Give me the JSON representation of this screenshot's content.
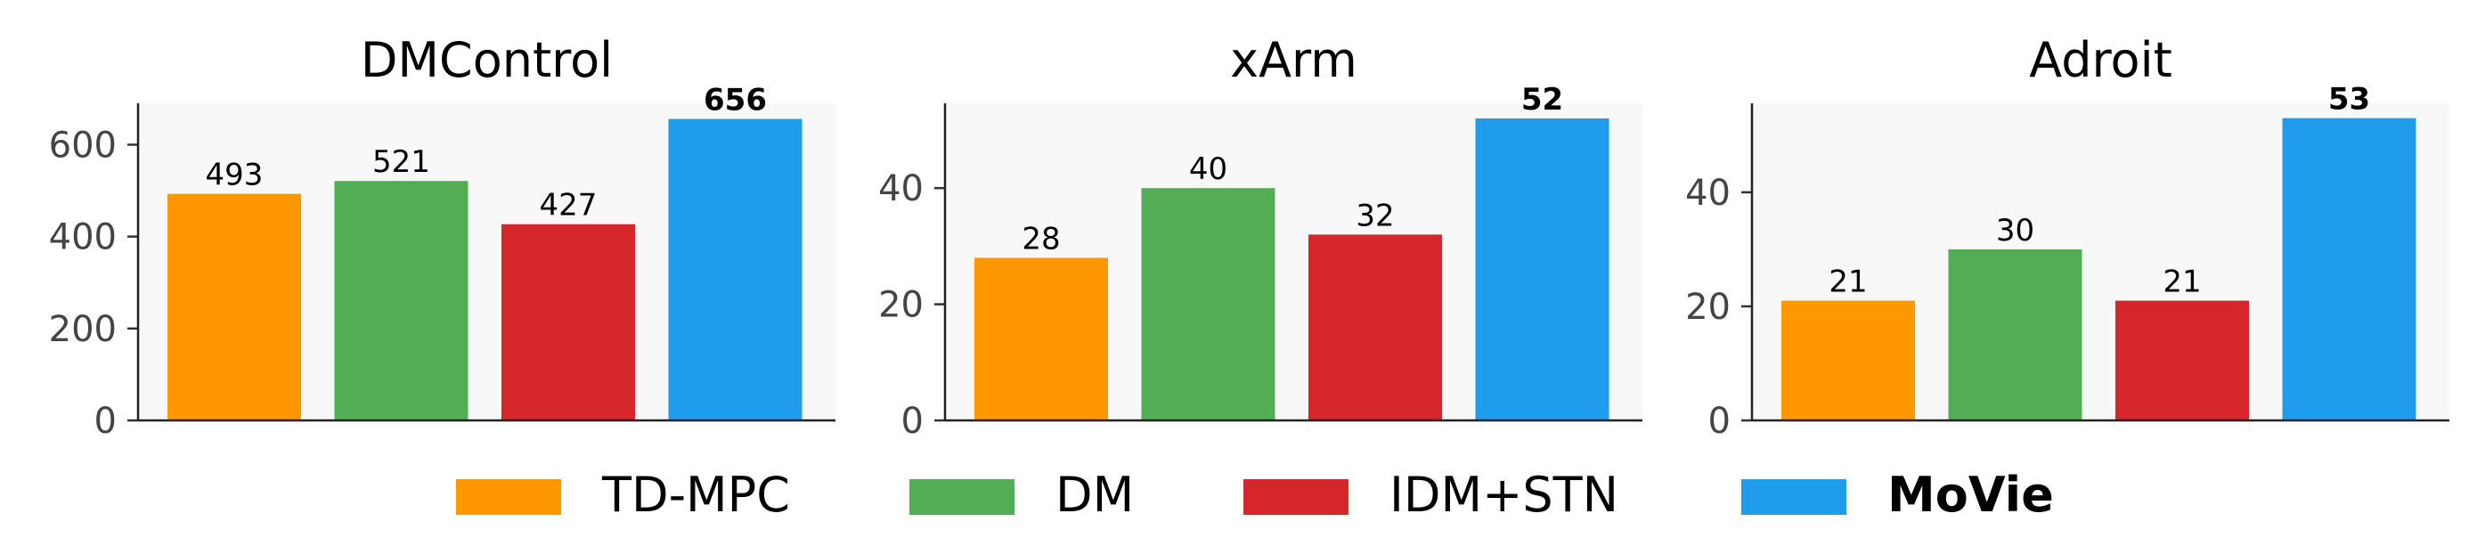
{
  "chart_data": {
    "type": "bar",
    "grid": false,
    "legend_position": "bottom",
    "legend": [
      {
        "label": "TD-MPC",
        "color": "#FF9800",
        "bold": false
      },
      {
        "label": "DM",
        "color": "#52AD54",
        "bold": false
      },
      {
        "label": "IDM+STN",
        "color": "#D5262C",
        "bold": false
      },
      {
        "label": "MoVie",
        "color": "#209CED",
        "bold": true
      }
    ],
    "panels": [
      {
        "title": "DMControl",
        "categories": [
          "TD-MPC",
          "DM",
          "IDM+STN",
          "MoVie"
        ],
        "values": [
          493,
          521,
          427,
          656
        ],
        "data_labels": [
          "493",
          "521",
          "427",
          "656"
        ],
        "highlight_index": 3,
        "ylim": [
          0,
          690
        ],
        "yticks": [
          0,
          200,
          400,
          600
        ],
        "ytick_labels": [
          "0",
          "200",
          "400",
          "600"
        ]
      },
      {
        "title": "xArm",
        "categories": [
          "TD-MPC",
          "DM",
          "IDM+STN",
          "MoVie"
        ],
        "values": [
          28,
          40,
          32,
          52
        ],
        "data_labels": [
          "28",
          "40",
          "32",
          "52"
        ],
        "highlight_index": 3,
        "ylim": [
          0,
          54.6
        ],
        "yticks": [
          0,
          20,
          40
        ],
        "ytick_labels": [
          "0",
          "20",
          "40"
        ]
      },
      {
        "title": "Adroit",
        "categories": [
          "TD-MPC",
          "DM",
          "IDM+STN",
          "MoVie"
        ],
        "values": [
          21,
          30,
          21,
          53
        ],
        "data_labels": [
          "21",
          "30",
          "21",
          "53"
        ],
        "highlight_index": 3,
        "ylim": [
          0,
          55.6
        ],
        "yticks": [
          0,
          20,
          40
        ],
        "ytick_labels": [
          "0",
          "20",
          "40"
        ]
      }
    ]
  }
}
